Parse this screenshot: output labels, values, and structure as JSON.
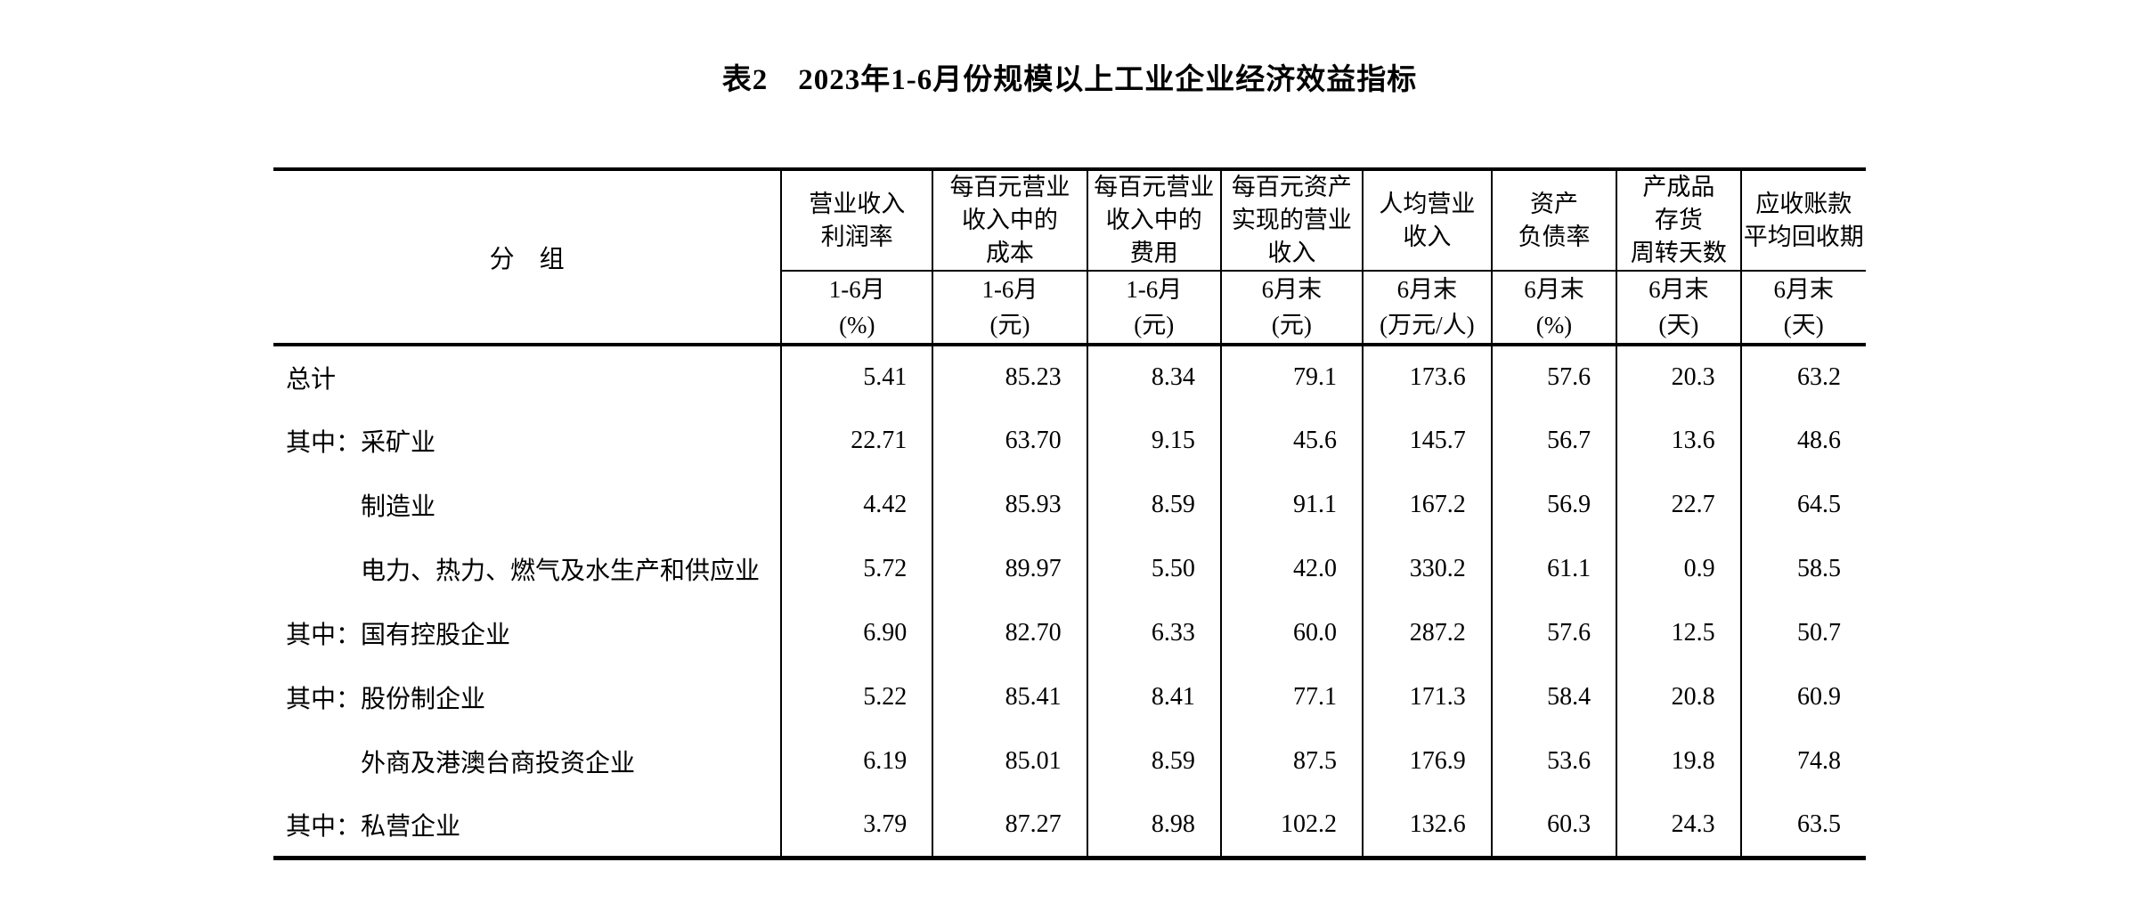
{
  "page": {
    "background_color": "#ffffff",
    "text_color": "#000000"
  },
  "title": "表2　2023年1-6月份规模以上工业企业经济效益指标",
  "table": {
    "group_header": "分　组",
    "columns": [
      {
        "indicator": "营业收入\n利润率",
        "period": "1-6月\n(%)"
      },
      {
        "indicator": "每百元营业\n收入中的\n成本",
        "period": "1-6月\n(元)"
      },
      {
        "indicator": "每百元营业\n收入中的\n费用",
        "period": "1-6月\n(元)"
      },
      {
        "indicator": "每百元资产\n实现的营业\n收入",
        "period": "6月末\n(元)"
      },
      {
        "indicator": "人均营业\n收入",
        "period": "6月末\n(万元/人)"
      },
      {
        "indicator": "资产\n负债率",
        "period": "6月末\n(%)"
      },
      {
        "indicator": "产成品\n存货\n周转天数",
        "period": "6月末\n(天)"
      },
      {
        "indicator": "应收账款\n平均回收期",
        "period": "6月末\n(天)"
      }
    ],
    "rows": [
      {
        "label": "总计",
        "indent": false,
        "values": [
          "5.41",
          "85.23",
          "8.34",
          "79.1",
          "173.6",
          "57.6",
          "20.3",
          "63.2"
        ]
      },
      {
        "label": "其中：采矿业",
        "indent": false,
        "values": [
          "22.71",
          "63.70",
          "9.15",
          "45.6",
          "145.7",
          "56.7",
          "13.6",
          "48.6"
        ]
      },
      {
        "label": "制造业",
        "indent": true,
        "values": [
          "4.42",
          "85.93",
          "8.59",
          "91.1",
          "167.2",
          "56.9",
          "22.7",
          "64.5"
        ]
      },
      {
        "label": "电力、热力、燃气及水生产和供应业",
        "indent": true,
        "values": [
          "5.72",
          "89.97",
          "5.50",
          "42.0",
          "330.2",
          "61.1",
          "0.9",
          "58.5"
        ]
      },
      {
        "label": "其中：国有控股企业",
        "indent": false,
        "values": [
          "6.90",
          "82.70",
          "6.33",
          "60.0",
          "287.2",
          "57.6",
          "12.5",
          "50.7"
        ]
      },
      {
        "label": "其中：股份制企业",
        "indent": false,
        "values": [
          "5.22",
          "85.41",
          "8.41",
          "77.1",
          "171.3",
          "58.4",
          "20.8",
          "60.9"
        ]
      },
      {
        "label": "外商及港澳台商投资企业",
        "indent": true,
        "values": [
          "6.19",
          "85.01",
          "8.59",
          "87.5",
          "176.9",
          "53.6",
          "19.8",
          "74.8"
        ]
      },
      {
        "label": "其中：私营企业",
        "indent": false,
        "values": [
          "3.79",
          "87.27",
          "8.98",
          "102.2",
          "132.6",
          "60.3",
          "24.3",
          "63.5"
        ]
      }
    ]
  }
}
